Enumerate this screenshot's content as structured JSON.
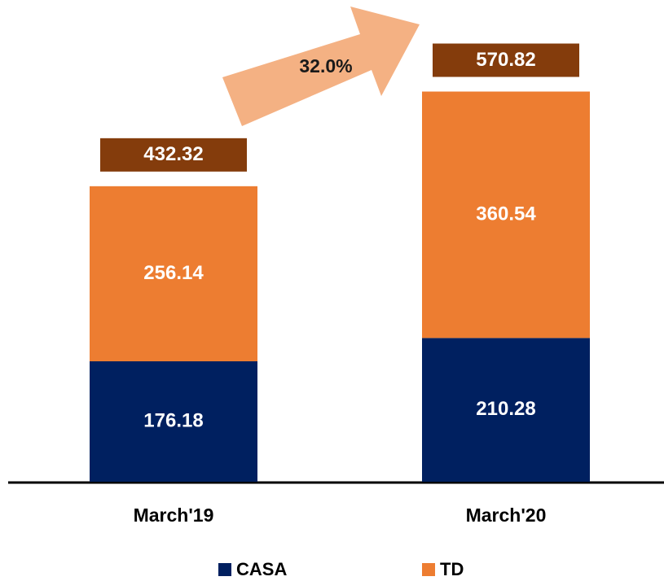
{
  "chart_data": {
    "type": "stacked_bar",
    "categories": [
      "March'19",
      "March'20"
    ],
    "series": [
      {
        "name": "CASA",
        "color": "#002060",
        "values": [
          176.18,
          210.28
        ]
      },
      {
        "name": "TD",
        "color": "#ed7d31",
        "values": [
          256.14,
          360.54
        ]
      }
    ],
    "totals": [
      432.32,
      570.82
    ],
    "total_color": "#843c0c",
    "annotation": "32.0%",
    "ylim": [
      0,
      700
    ]
  }
}
